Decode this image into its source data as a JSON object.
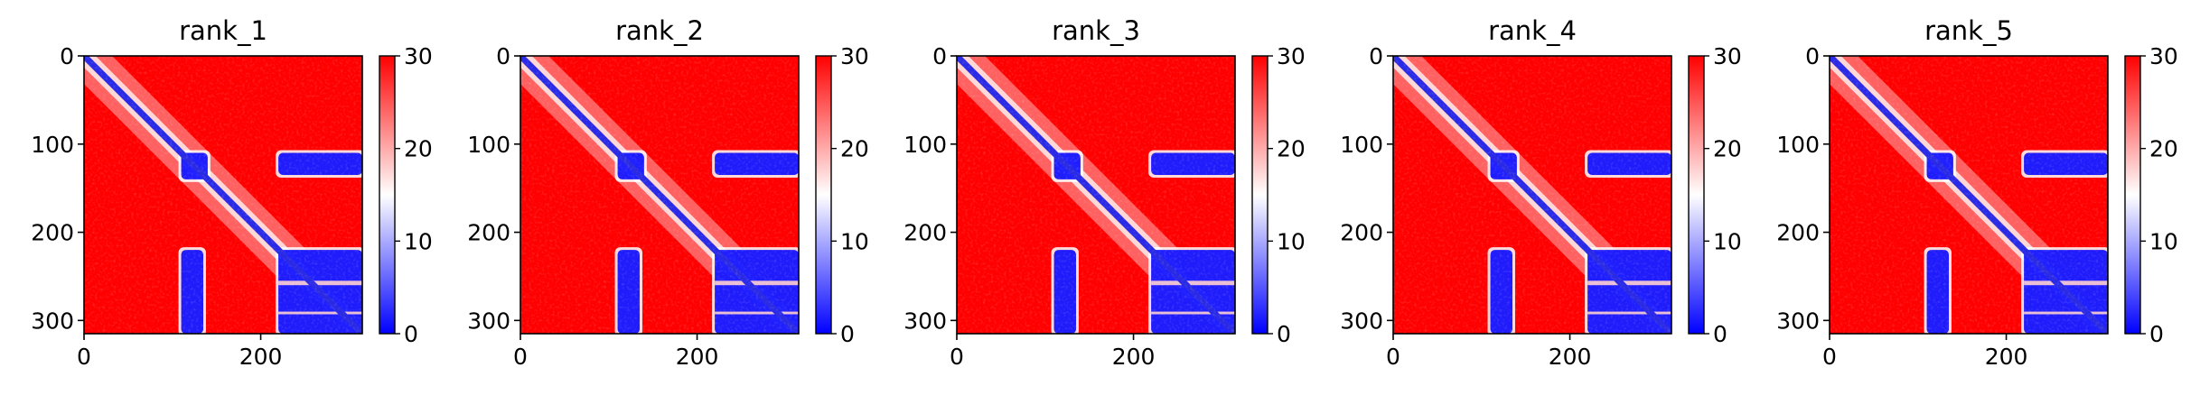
{
  "colors": {
    "low": "#0000ff",
    "mid": "#ffffff",
    "high": "#ff0000",
    "diagonal": "#2a2ae6"
  },
  "colormap": "bwr",
  "chart_data": [
    {
      "type": "heatmap",
      "title": "rank_1",
      "size": 315,
      "xticks": [
        0,
        200
      ],
      "yticks": [
        0,
        100,
        200,
        300
      ],
      "colorbar": {
        "range": [
          0,
          30
        ],
        "ticks": [
          0,
          10,
          20,
          30
        ]
      },
      "low_distance_blocks": [
        {
          "rows": [
            110,
            140
          ],
          "cols": [
            110,
            140
          ]
        },
        {
          "rows": [
            110,
            135
          ],
          "cols": [
            220,
            315
          ]
        },
        {
          "rows": [
            220,
            315
          ],
          "cols": [
            110,
            135
          ]
        },
        {
          "rows": [
            220,
            315
          ],
          "cols": [
            220,
            315
          ]
        }
      ]
    },
    {
      "type": "heatmap",
      "title": "rank_2",
      "size": 315,
      "xticks": [
        0,
        200
      ],
      "yticks": [
        0,
        100,
        200,
        300
      ],
      "colorbar": {
        "range": [
          0,
          30
        ],
        "ticks": [
          0,
          10,
          20,
          30
        ]
      },
      "low_distance_blocks": [
        {
          "rows": [
            110,
            140
          ],
          "cols": [
            110,
            140
          ]
        },
        {
          "rows": [
            110,
            135
          ],
          "cols": [
            220,
            315
          ]
        },
        {
          "rows": [
            220,
            315
          ],
          "cols": [
            110,
            135
          ]
        },
        {
          "rows": [
            220,
            315
          ],
          "cols": [
            220,
            315
          ]
        }
      ]
    },
    {
      "type": "heatmap",
      "title": "rank_3",
      "size": 315,
      "xticks": [
        0,
        200
      ],
      "yticks": [
        0,
        100,
        200,
        300
      ],
      "colorbar": {
        "range": [
          0,
          30
        ],
        "ticks": [
          0,
          10,
          20,
          30
        ]
      },
      "low_distance_blocks": [
        {
          "rows": [
            110,
            140
          ],
          "cols": [
            110,
            140
          ]
        },
        {
          "rows": [
            110,
            135
          ],
          "cols": [
            220,
            315
          ]
        },
        {
          "rows": [
            220,
            315
          ],
          "cols": [
            110,
            135
          ]
        },
        {
          "rows": [
            220,
            315
          ],
          "cols": [
            220,
            315
          ]
        }
      ]
    },
    {
      "type": "heatmap",
      "title": "rank_4",
      "size": 315,
      "xticks": [
        0,
        200
      ],
      "yticks": [
        0,
        100,
        200,
        300
      ],
      "colorbar": {
        "range": [
          0,
          30
        ],
        "ticks": [
          0,
          10,
          20,
          30
        ]
      },
      "low_distance_blocks": [
        {
          "rows": [
            110,
            140
          ],
          "cols": [
            110,
            140
          ]
        },
        {
          "rows": [
            110,
            135
          ],
          "cols": [
            220,
            315
          ]
        },
        {
          "rows": [
            220,
            315
          ],
          "cols": [
            110,
            135
          ]
        },
        {
          "rows": [
            220,
            315
          ],
          "cols": [
            220,
            315
          ]
        }
      ]
    },
    {
      "type": "heatmap",
      "title": "rank_5",
      "size": 315,
      "xticks": [
        0,
        200
      ],
      "yticks": [
        0,
        100,
        200,
        300
      ],
      "colorbar": {
        "range": [
          0,
          30
        ],
        "ticks": [
          0,
          10,
          20,
          30
        ]
      },
      "low_distance_blocks": [
        {
          "rows": [
            110,
            140
          ],
          "cols": [
            110,
            140
          ]
        },
        {
          "rows": [
            110,
            135
          ],
          "cols": [
            220,
            315
          ]
        },
        {
          "rows": [
            220,
            315
          ],
          "cols": [
            110,
            135
          ]
        },
        {
          "rows": [
            220,
            315
          ],
          "cols": [
            220,
            315
          ]
        }
      ]
    }
  ]
}
